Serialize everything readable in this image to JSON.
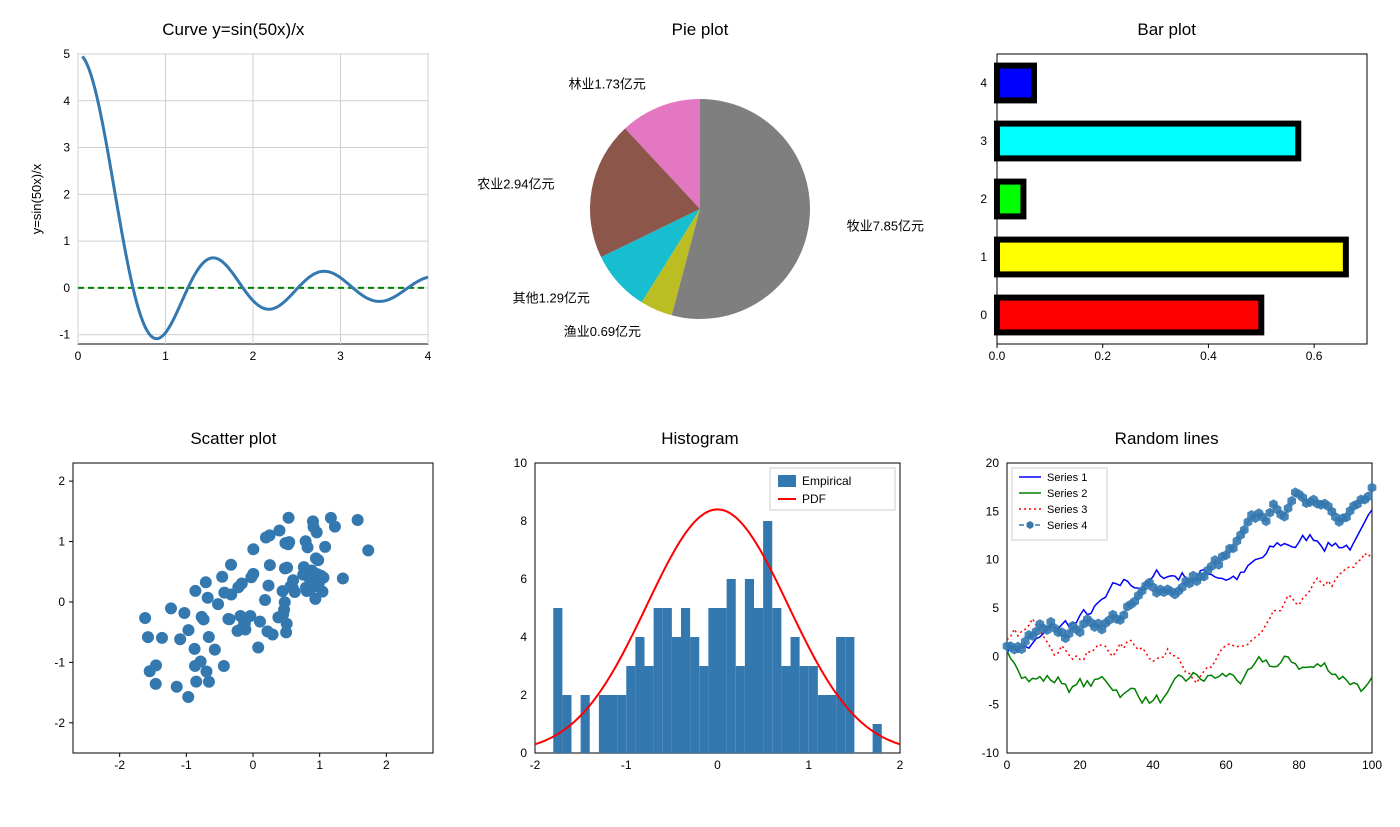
{
  "curve": {
    "title": "Curve y=sin(50x)/x",
    "ylabel": "y=sin(50x)/x",
    "xlim": [
      0,
      4
    ],
    "ylim": [
      -1.2,
      5
    ],
    "xticks": [
      0,
      1,
      2,
      3,
      4
    ],
    "yticks": [
      -1,
      0,
      1,
      2,
      3,
      4,
      5
    ],
    "line_color": "#3478b0",
    "line_width": 3,
    "zero_line_color": "#008000",
    "zero_line_dash": "6,4",
    "background": "#ffffff",
    "grid_color": "#d0d0d0"
  },
  "pie": {
    "title": "Pie plot",
    "labels": [
      "林业1.73亿元",
      "农业2.94亿元",
      "其他1.29亿元",
      "渔业0.69亿元",
      "牧业7.85亿元"
    ],
    "values": [
      1.73,
      2.94,
      1.29,
      0.69,
      7.85
    ],
    "colors": [
      "#e377c2",
      "#8c564b",
      "#17becf",
      "#bcbd22",
      "#7f7f7f"
    ],
    "start_angle": 90,
    "label_fontsize": 13
  },
  "bar": {
    "title": "Bar plot",
    "categories": [
      "0",
      "1",
      "2",
      "3",
      "4"
    ],
    "values": [
      0.5,
      0.66,
      0.05,
      0.57,
      0.07
    ],
    "colors": [
      "#ff0000",
      "#ffff00",
      "#00ff00",
      "#00ffff",
      "#0000ff"
    ],
    "edge_color": "#000000",
    "edge_width": 6,
    "bar_height": 0.6,
    "xlim": [
      0.0,
      0.7
    ],
    "xticks": [
      0.0,
      0.2,
      0.4,
      0.6
    ],
    "background": "#ffffff"
  },
  "scatter": {
    "title": "Scatter plot",
    "xlim": [
      -2.7,
      2.7
    ],
    "ylim": [
      -2.5,
      2.3
    ],
    "xticks": [
      -2,
      -1,
      0,
      1,
      2
    ],
    "yticks": [
      -2,
      -1,
      0,
      1,
      2
    ],
    "marker_color": "#3478b0",
    "marker_size": 6,
    "n_points": 100
  },
  "histogram": {
    "title": "Histogram",
    "xlim": [
      -2,
      2
    ],
    "ylim": [
      0,
      10
    ],
    "xticks": [
      -2,
      -1,
      0,
      1,
      2
    ],
    "yticks": [
      0,
      2,
      4,
      6,
      8,
      10
    ],
    "bar_color": "#3478b0",
    "pdf_color": "#ff0000",
    "pdf_width": 2,
    "bins": [
      {
        "x": -1.75,
        "h": 5
      },
      {
        "x": -1.65,
        "h": 2
      },
      {
        "x": -1.55,
        "h": 0
      },
      {
        "x": -1.45,
        "h": 2
      },
      {
        "x": -1.35,
        "h": 0
      },
      {
        "x": -1.25,
        "h": 2
      },
      {
        "x": -1.15,
        "h": 2
      },
      {
        "x": -1.05,
        "h": 2
      },
      {
        "x": -0.95,
        "h": 3
      },
      {
        "x": -0.85,
        "h": 4
      },
      {
        "x": -0.75,
        "h": 3
      },
      {
        "x": -0.65,
        "h": 5
      },
      {
        "x": -0.55,
        "h": 5
      },
      {
        "x": -0.45,
        "h": 4
      },
      {
        "x": -0.35,
        "h": 5
      },
      {
        "x": -0.25,
        "h": 4
      },
      {
        "x": -0.15,
        "h": 3
      },
      {
        "x": -0.05,
        "h": 5
      },
      {
        "x": 0.05,
        "h": 5
      },
      {
        "x": 0.15,
        "h": 6
      },
      {
        "x": 0.25,
        "h": 3
      },
      {
        "x": 0.35,
        "h": 6
      },
      {
        "x": 0.45,
        "h": 5
      },
      {
        "x": 0.55,
        "h": 8
      },
      {
        "x": 0.65,
        "h": 5
      },
      {
        "x": 0.75,
        "h": 3
      },
      {
        "x": 0.85,
        "h": 4
      },
      {
        "x": 0.95,
        "h": 3
      },
      {
        "x": 1.05,
        "h": 3
      },
      {
        "x": 1.15,
        "h": 2
      },
      {
        "x": 1.25,
        "h": 2
      },
      {
        "x": 1.35,
        "h": 4
      },
      {
        "x": 1.45,
        "h": 4
      },
      {
        "x": 1.55,
        "h": 0
      },
      {
        "x": 1.65,
        "h": 0
      },
      {
        "x": 1.75,
        "h": 1
      }
    ],
    "bin_width": 0.1,
    "legend": [
      "Empirical",
      "PDF"
    ]
  },
  "random_lines": {
    "title": "Random lines",
    "xlim": [
      0,
      100
    ],
    "ylim": [
      -10,
      20
    ],
    "xticks": [
      0,
      20,
      40,
      60,
      80,
      100
    ],
    "yticks": [
      -10,
      -5,
      0,
      5,
      10,
      15,
      20
    ],
    "legend": [
      "Series 1",
      "Series 2",
      "Series 3",
      "Series 4"
    ],
    "series": [
      {
        "color": "#0000ff",
        "style": "solid",
        "width": 1.5
      },
      {
        "color": "#008000",
        "style": "solid",
        "width": 1.5
      },
      {
        "color": "#ff0000",
        "style": "dotted",
        "width": 1.5
      },
      {
        "color": "#3478b0",
        "style": "dashed-hex",
        "width": 1.5,
        "marker_size": 5
      }
    ]
  }
}
